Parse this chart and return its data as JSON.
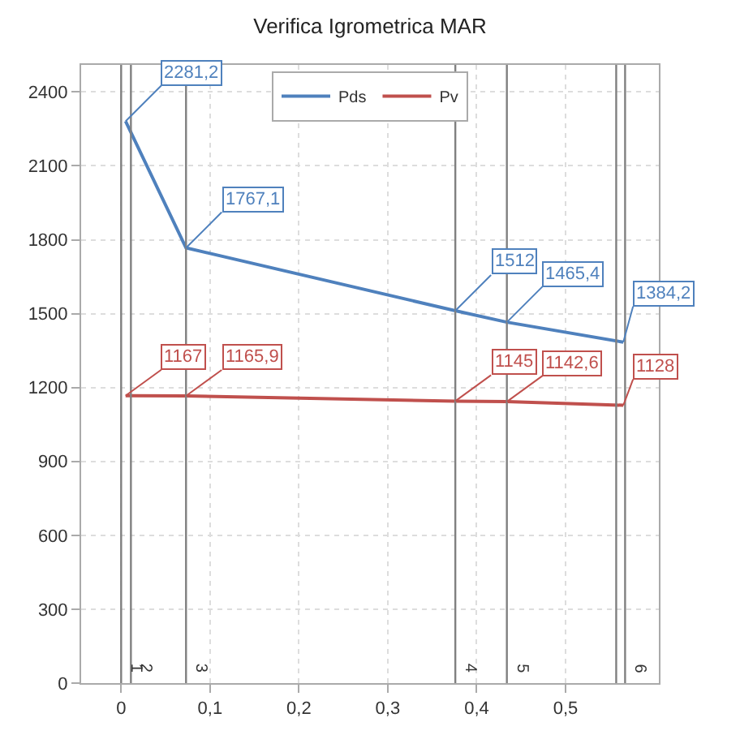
{
  "chart_data": {
    "type": "line",
    "title": "Verifica Igrometrica MAR",
    "x": [
      0.005,
      0.073,
      0.376,
      0.434,
      0.565
    ],
    "series": [
      {
        "name": "Pds",
        "color": "#4f81bd",
        "values": [
          2281.2,
          1767.1,
          1512,
          1465.4,
          1384.2
        ],
        "value_labels": [
          "2281,2",
          "1767,1",
          "1512",
          "1465,4",
          "1384,2"
        ]
      },
      {
        "name": "Pv",
        "color": "#c0504d",
        "values": [
          1167,
          1165.9,
          1145,
          1142.6,
          1128
        ],
        "value_labels": [
          "1167",
          "1165,9",
          "1145",
          "1142,6",
          "1128"
        ]
      }
    ],
    "ref_lines": [
      {
        "axis": "x",
        "value": 0,
        "color": "#808080"
      },
      {
        "axis": "x",
        "value": 0.011,
        "color": "#808080"
      },
      {
        "axis": "x",
        "value": 0.073,
        "color": "#808080"
      },
      {
        "axis": "x",
        "value": 0.376,
        "color": "#808080"
      },
      {
        "axis": "x",
        "value": 0.434,
        "color": "#808080"
      },
      {
        "axis": "x",
        "value": 0.557,
        "color": "#808080"
      },
      {
        "axis": "x",
        "value": 0.567,
        "color": "#808080"
      }
    ],
    "annotations": [
      {
        "text": "1",
        "x": 0.0,
        "y": 0
      },
      {
        "text": "2",
        "x": 0.011,
        "y": 0
      },
      {
        "text": "3",
        "x": 0.073,
        "y": 0
      },
      {
        "text": "4",
        "x": 0.376,
        "y": 0
      },
      {
        "text": "5",
        "x": 0.434,
        "y": 0
      },
      {
        "text": "6",
        "x": 0.567,
        "y": 0
      }
    ],
    "xlim": [
      -0.045,
      0.605
    ],
    "ylim": [
      0,
      2510
    ],
    "xticks": [
      0,
      {
        "value": 0.1,
        "label": "0,1"
      },
      {
        "value": 0.2,
        "label": "0,2"
      },
      {
        "value": 0.3,
        "label": "0,3"
      },
      {
        "value": 0.4,
        "label": "0,4"
      },
      {
        "value": 0.5,
        "label": "0,5"
      }
    ],
    "yticks": [
      0,
      300,
      600,
      900,
      1200,
      1500,
      1800,
      2100,
      2400
    ],
    "grid": true,
    "legend": "top",
    "marker": "none",
    "line_style": "solid"
  }
}
